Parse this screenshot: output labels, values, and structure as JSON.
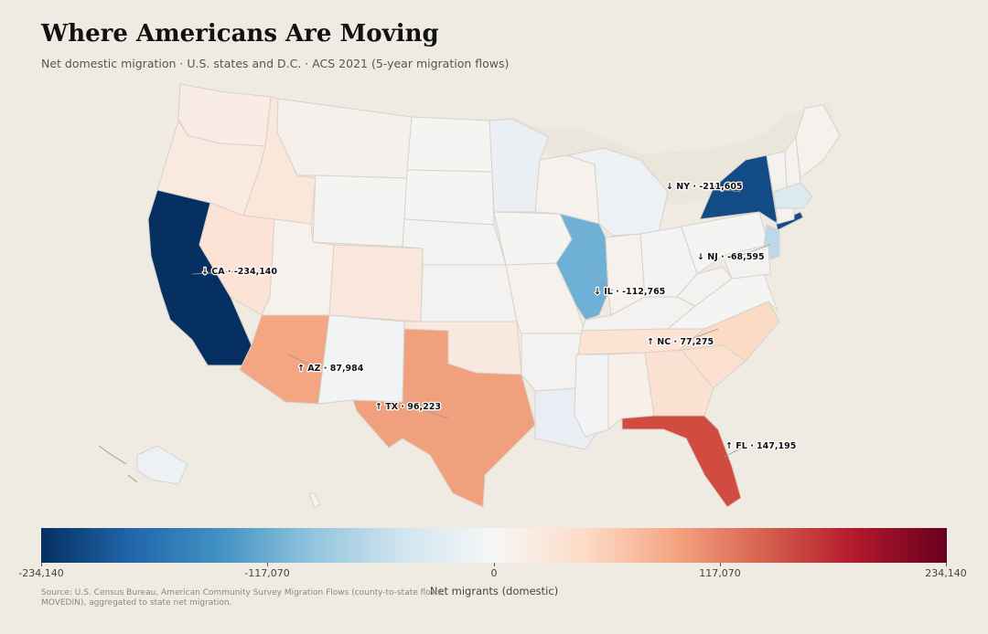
{
  "title": "Where Americans Are Moving",
  "subtitle": "Net domestic migration · U.S. states and D.C. · ACS 2021 (5-year migration flows)",
  "source": "Source: U.S. Census Bureau, American Community Survey Migration Flows (county-to-state flows, MOVEDIN), aggregated to state net migration.",
  "colorbar": {
    "label": "Net migrants (domestic)",
    "min": -234140,
    "max": 234140,
    "ticks": [
      "-234,140",
      "-117,070",
      "0",
      "117,070",
      "234,140"
    ],
    "colormap": "RdBu_r (diverging, blue = net outflow, red = net inflow)"
  },
  "labels": {
    "NY": "↓ NY · -211,605",
    "CA": "↓ CA · -234,140",
    "NJ": "↓ NJ · -68,595",
    "IL": "↓ IL · -112,765",
    "NC": "↑ NC · 77,275",
    "AZ": "↑ AZ · 87,984",
    "TX": "↑ TX · 96,223",
    "FL": "↑ FL · 147,195"
  },
  "chart_data": {
    "type": "choropleth",
    "labeled_values": [
      {
        "state": "CA",
        "value": -234140
      },
      {
        "state": "NY",
        "value": -211605
      },
      {
        "state": "IL",
        "value": -112765
      },
      {
        "state": "NJ",
        "value": -68595
      },
      {
        "state": "NC",
        "value": 77275
      },
      {
        "state": "AZ",
        "value": 87984
      },
      {
        "state": "TX",
        "value": 96223
      },
      {
        "state": "FL",
        "value": 147195
      }
    ],
    "fill_colors": {
      "CA": "#053061",
      "NY": "#134b87",
      "IL": "#6fb0d7",
      "NJ": "#bcd9ea",
      "FL": "#d24b40",
      "TX": "#f0a07c",
      "AZ": "#f4a582",
      "NC": "#fcdbc6",
      "SC": "#fbe0cf",
      "GA": "#fbe1d2",
      "NV": "#fce3d6",
      "CO": "#f9e6dc",
      "ID": "#fbe6da",
      "OR": "#fae9e0",
      "WA": "#f9ece5",
      "TN": "#fde3d3",
      "OK": "#f9e8df",
      "MA": "#dce9f1",
      "MN": "#e9eff3",
      "MI": "#edf1f3",
      "LA": "#e8eef3",
      "AK": "#edf1f3",
      "OH": "#f2f3f4",
      "PA": "#f4f4f3",
      "NM": "#f2f3f4",
      "MT": "#f5f0eb",
      "UT": "#f6f1ec",
      "WI": "#f6f1ec",
      "other": "#f3f2f0"
    }
  }
}
